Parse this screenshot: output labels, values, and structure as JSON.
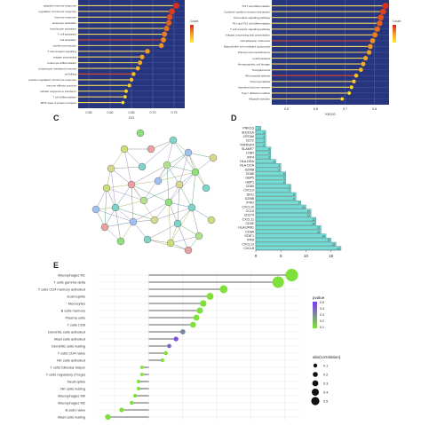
{
  "panel_labels": {
    "C": "C",
    "D": "D",
    "E": "E"
  },
  "panel_a": {
    "y_labels": [
      "adaptive immune response",
      "regulation of immune response",
      "immune response",
      "leukocyte activation",
      "lymphocyte activation",
      "T cell activation",
      "cell activation",
      "cytokine production",
      "T cell receptor signaling",
      "antigen processing",
      "leukocyte differentiation",
      "lymphocyte mediated immunity",
      "cell killing",
      "positive regulation of immune response",
      "immune effector process",
      "cellular response to interferon",
      "T cell differentiation",
      "MHC class II protein complex"
    ],
    "x_ticks": [
      "0.55",
      "0.60",
      "0.65",
      "0.70",
      "0.75"
    ],
    "x_label": "GO",
    "legend_title": "Count",
    "colors": {
      "bg": "#27357f",
      "grid": "#5060a8",
      "high": "#d7301f",
      "mid": "#f08a24",
      "low": "#ffe52b"
    }
  },
  "panel_b": {
    "y_labels": [
      "Th17 cell differentiation",
      "Cytokine-cytokine receptor interaction",
      "Chemokine signaling pathway",
      "Th1 and Th2 cell differentiation",
      "T cell receptor signaling pathway",
      "Antigen processing and presentation",
      "Cell adhesion molecules",
      "Natural killer cell mediated cytotoxicity",
      "Primary immunodeficiency",
      "Leishmaniasis",
      "Hematopoietic cell lineage",
      "Toxoplasmosis",
      "Rheumatoid arthritis",
      "Viral myocarditis",
      "Intestinal immune network",
      "Type I diabetes mellitus",
      "Allograft rejection"
    ],
    "x_ticks": [
      "0.5",
      "0.6",
      "0.7",
      "0.8"
    ],
    "x_label": "KEGG",
    "legend_title": "Count"
  },
  "panel_d": {
    "genes": [
      "PRKCQ",
      "SH2D1A",
      "CRTAM",
      "CD72",
      "TNFRSF9",
      "SLAMF7",
      "LTBR",
      "IRF4",
      "HLA-DRA",
      "HLA-DOA",
      "GZMB",
      "CD86",
      "GBP5",
      "GBP1",
      "CD80",
      "CXCL9",
      "IDO1",
      "GZMB",
      "IFNG",
      "CXCL10",
      "CCL5",
      "CD274",
      "CXCL11",
      "CD3E",
      "HLA-DRB1",
      "CD8A",
      "STAT1",
      "IRF8",
      "CXCL13",
      "CXCL8"
    ],
    "values": [
      1,
      2,
      2,
      2,
      2,
      3,
      3,
      3,
      4,
      5,
      5,
      6,
      6,
      6,
      7,
      7,
      8,
      8,
      9,
      10,
      11,
      11,
      12,
      12,
      13,
      13,
      14,
      15,
      16,
      17
    ],
    "x_ticks": [
      "0",
      "5",
      "10",
      "15"
    ],
    "bar_color": "#76dbd5"
  },
  "panel_e": {
    "cells": [
      "Macrophages M1",
      "T cells gamma delta",
      "T cells CD4 memory activated",
      "Eosinophils",
      "Monocytes",
      "B cells memory",
      "Plasma cells",
      "T cells CD8",
      "Dendritic cells activated",
      "Mast cells activated",
      "Dendritic cells resting",
      "T cells CD4 naive",
      "NK cells activated",
      "T cells follicular helper",
      "T cells regulatory (Tregs)",
      "Neutrophils",
      "NK cells resting",
      "Macrophages M0",
      "Macrophages M2",
      "B cells naive",
      "Mast cells resting"
    ],
    "correlation": [
      0.42,
      0.38,
      0.22,
      0.18,
      0.16,
      0.15,
      0.14,
      0.13,
      0.1,
      0.08,
      0.06,
      0.05,
      0.04,
      -0.02,
      -0.02,
      -0.03,
      -0.03,
      -0.04,
      -0.05,
      -0.08,
      -0.12
    ],
    "abs_correlation": [
      0.42,
      0.38,
      0.22,
      0.18,
      0.16,
      0.15,
      0.14,
      0.13,
      0.1,
      0.08,
      0.06,
      0.05,
      0.04,
      0.02,
      0.02,
      0.03,
      0.03,
      0.04,
      0.05,
      0.08,
      0.12
    ],
    "pvalue": [
      0.01,
      0.02,
      0.02,
      0.03,
      0.03,
      0.04,
      0.04,
      0.05,
      0.3,
      0.45,
      0.4,
      0.05,
      0.05,
      0.05,
      0.05,
      0.05,
      0.05,
      0.05,
      0.05,
      0.04,
      0.02
    ],
    "legend_pvalue_title": "pvalue",
    "legend_pvalue_ticks": [
      "0.5",
      "0.4",
      "0.3",
      "0.2",
      "0.1"
    ],
    "legend_size_title": "abs(correlation)",
    "legend_size_ticks": [
      "0.1",
      "0.2",
      "0.3",
      "0.4",
      "0.5"
    ],
    "colors": {
      "low": "#7ee03a",
      "high": "#7b3ff0"
    }
  },
  "chart_data": [
    {
      "type": "scatter",
      "panel": "D",
      "categories": [
        "PRKCQ",
        "SH2D1A",
        "CRTAM",
        "CD72",
        "TNFRSF9",
        "SLAMF7",
        "LTBR",
        "IRF4",
        "HLA-DRA",
        "HLA-DOA",
        "GZMB",
        "CD86",
        "GBP5",
        "GBP1",
        "CD80",
        "CXCL9",
        "IDO1",
        "GZMB",
        "IFNG",
        "CXCL10",
        "CCL5",
        "CD274",
        "CXCL11",
        "CD3E",
        "HLA-DRB1",
        "CD8A",
        "STAT1",
        "IRF8",
        "CXCL13",
        "CXCL8"
      ],
      "values": [
        1,
        2,
        2,
        2,
        2,
        3,
        3,
        3,
        4,
        5,
        5,
        6,
        6,
        6,
        7,
        7,
        8,
        8,
        9,
        10,
        11,
        11,
        12,
        12,
        13,
        13,
        14,
        15,
        16,
        17
      ],
      "xlim": [
        0,
        17
      ]
    },
    {
      "type": "scatter",
      "panel": "E",
      "categories": [
        "Macrophages M1",
        "T cells gamma delta",
        "T cells CD4 memory activated",
        "Eosinophils",
        "Monocytes",
        "B cells memory",
        "Plasma cells",
        "T cells CD8",
        "Dendritic cells activated",
        "Mast cells activated",
        "Dendritic cells resting",
        "T cells CD4 naive",
        "NK cells activated",
        "T cells follicular helper",
        "T cells regulatory (Tregs)",
        "Neutrophils",
        "NK cells resting",
        "Macrophages M0",
        "Macrophages M2",
        "B cells naive",
        "Mast cells resting"
      ],
      "values": [
        0.42,
        0.38,
        0.22,
        0.18,
        0.16,
        0.15,
        0.14,
        0.13,
        0.1,
        0.08,
        0.06,
        0.05,
        0.04,
        -0.02,
        -0.02,
        -0.03,
        -0.03,
        -0.04,
        -0.05,
        -0.08,
        -0.12
      ]
    }
  ]
}
